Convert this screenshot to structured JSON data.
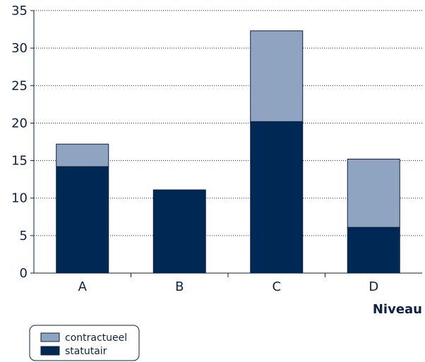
{
  "chart_data": {
    "type": "bar",
    "stacked": true,
    "categories": [
      "A",
      "B",
      "C",
      "D"
    ],
    "series": [
      {
        "name": "statutair",
        "values": [
          14.2,
          11.1,
          20.2,
          6.1
        ],
        "color": "#002855"
      },
      {
        "name": "contractueel",
        "values": [
          3.0,
          0,
          12.1,
          9.1
        ],
        "color": "#8fa4c1"
      }
    ],
    "xlabel": "Niveau",
    "ylabel": "",
    "ylim": [
      0,
      35
    ],
    "yticks": [
      0,
      5,
      10,
      15,
      20,
      25,
      30,
      35
    ],
    "grid": "horizontal-dotted",
    "legend_position": "bottom-left",
    "legend_order": [
      "contractueel",
      "statutair"
    ]
  }
}
